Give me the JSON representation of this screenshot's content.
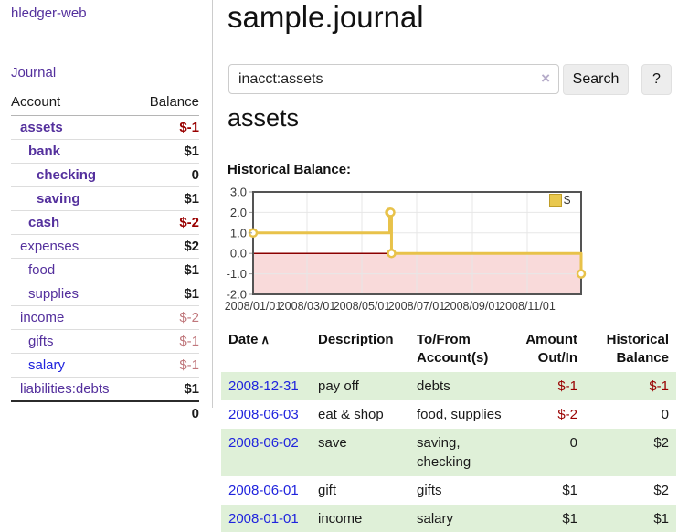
{
  "colors": {
    "link_purple": "#54309d",
    "link_blue": "#2024dd",
    "negative": "#990000",
    "negative_faded": "#c0777c",
    "stripe_green": "#dff0d8",
    "series_gold": "#e8c24a",
    "negative_region_pink": "#f9dada",
    "zero_line": "#8b0000",
    "chart_border": "#545454",
    "grid": "#e7e7e7"
  },
  "sidebar": {
    "brand": "hledger-web",
    "journal_link": "Journal",
    "accounts": {
      "col_account": "Account",
      "col_balance": "Balance",
      "rows": [
        {
          "name": "assets",
          "indent": 0,
          "emph": true,
          "balance": "$-1"
        },
        {
          "name": "bank",
          "indent": 1,
          "emph": true,
          "balance": "$1"
        },
        {
          "name": "checking",
          "indent": 2,
          "emph": true,
          "balance": "0"
        },
        {
          "name": "saving",
          "indent": 2,
          "emph": true,
          "balance": "$1"
        },
        {
          "name": "cash",
          "indent": 1,
          "emph": true,
          "balance": "$-2"
        },
        {
          "name": "expenses",
          "indent": 0,
          "emph": false,
          "balance": "$2"
        },
        {
          "name": "food",
          "indent": 1,
          "emph": false,
          "balance": "$1"
        },
        {
          "name": "supplies",
          "indent": 1,
          "emph": false,
          "balance": "$1"
        },
        {
          "name": "income",
          "indent": 0,
          "emph": false,
          "balance": "$-2"
        },
        {
          "name": "gifts",
          "indent": 1,
          "emph": false,
          "balance": "$-1"
        },
        {
          "name": "salary",
          "indent": 1,
          "emph": false,
          "balance": "$-1",
          "link_style": "blue"
        },
        {
          "name": "liabilities:debts",
          "indent": 0,
          "emph": false,
          "balance": "$1"
        }
      ],
      "total": "0"
    }
  },
  "main": {
    "title": "sample.journal",
    "search": {
      "value": "inacct:assets",
      "clear_icon": "×",
      "search_button": "Search",
      "help_button": "?"
    },
    "account_heading": "assets",
    "chart_title": "Historical Balance:"
  },
  "chart_data": {
    "type": "line",
    "step": true,
    "title": "Historical Balance:",
    "series": [
      {
        "name": "$",
        "color": "#e8c24a",
        "points": [
          [
            "2008-01-01",
            1
          ],
          [
            "2008-06-01",
            2
          ],
          [
            "2008-06-02",
            2
          ],
          [
            "2008-06-03",
            0
          ],
          [
            "2008-12-31",
            -1
          ]
        ]
      }
    ],
    "x_domain": [
      "2008-01-01",
      "2008-12-31"
    ],
    "ylim": [
      -2.0,
      3.0
    ],
    "yticks": [
      3.0,
      2.0,
      1.0,
      0.0,
      -1.0,
      -2.0
    ],
    "xticks": [
      {
        "label": "2008/01/01",
        "date": "2008-01-01"
      },
      {
        "label": "2008/03/01",
        "date": "2008-03-01"
      },
      {
        "label": "2008/05/01",
        "date": "2008-05-01"
      },
      {
        "label": "2008/07/01",
        "date": "2008-07-01"
      },
      {
        "label": "2008/09/01",
        "date": "2008-09-01"
      },
      {
        "label": "2008/11/01",
        "date": "2008-11-01"
      }
    ],
    "legend": {
      "label": "$",
      "position": "top-right"
    },
    "grid": true,
    "zero_line": true,
    "negative_region_shaded": true
  },
  "register": {
    "headers": {
      "date": "Date",
      "sort_caret": "∧",
      "description": "Description",
      "account_line1": "To/From",
      "account_line2": "Account(s)",
      "amount_line1": "Amount",
      "amount_line2": "Out/In",
      "balance_line1": "Historical",
      "balance_line2": "Balance"
    },
    "rows": [
      {
        "date": "2008-12-31",
        "description": "pay off",
        "accounts": [
          "debts"
        ],
        "amount": "$-1",
        "balance": "$-1",
        "striped": true
      },
      {
        "date": "2008-06-03",
        "description": "eat & shop",
        "accounts": [
          "food, supplies"
        ],
        "amount": "$-2",
        "balance": "0",
        "striped": false
      },
      {
        "date": "2008-06-02",
        "description": "save",
        "accounts": [
          "saving,",
          "checking"
        ],
        "amount": "0",
        "balance": "$2",
        "striped": true
      },
      {
        "date": "2008-06-01",
        "description": "gift",
        "accounts": [
          "gifts"
        ],
        "amount": "$1",
        "balance": "$2",
        "striped": false
      },
      {
        "date": "2008-01-01",
        "description": "income",
        "accounts": [
          "salary"
        ],
        "amount": "$1",
        "balance": "$1",
        "striped": true
      }
    ]
  }
}
